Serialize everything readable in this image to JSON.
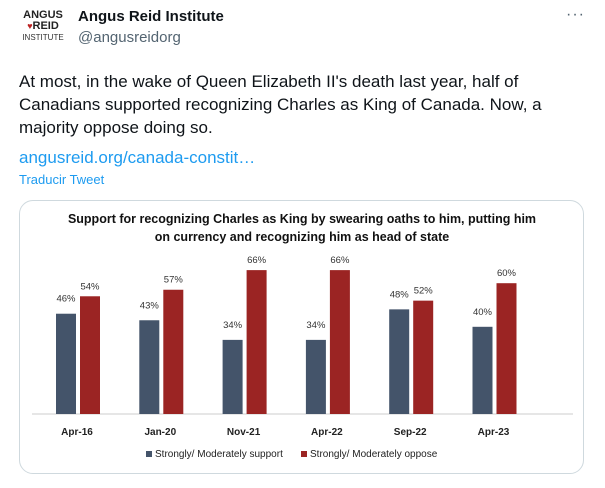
{
  "tweet": {
    "logo": {
      "line1": "ANGUS",
      "line2": "REID",
      "line3": "INSTITUTE"
    },
    "author_name": "Angus Reid Institute",
    "handle": "@angusreidorg",
    "more_icon": "ellipsis-icon",
    "body": "At most, in the wake of Queen Elizabeth II's death last year, half of Canadians supported recognizing Charles as King of Canada. Now, a majority oppose doing so.",
    "link": "angusreid.org/canada-constit…",
    "translate": "Traducir Tweet"
  },
  "chart_data": {
    "type": "bar",
    "title": [
      "Support for recognizing Charles as King by swearing oaths to him, putting him",
      "on currency and recognizing him as head of state"
    ],
    "categories": [
      "Apr-16",
      "Jan-20",
      "Nov-21",
      "Apr-22",
      "Sep-22",
      "Apr-23"
    ],
    "series": [
      {
        "name": "Strongly/ Moderately support",
        "color": "#44546a",
        "values": [
          46,
          43,
          34,
          34,
          48,
          40
        ]
      },
      {
        "name": "Strongly/ Moderately oppose",
        "color": "#9b2423",
        "values": [
          54,
          57,
          66,
          66,
          52,
          60
        ]
      }
    ],
    "ylim": [
      0,
      70
    ],
    "grid": false,
    "legend": "bottom"
  }
}
